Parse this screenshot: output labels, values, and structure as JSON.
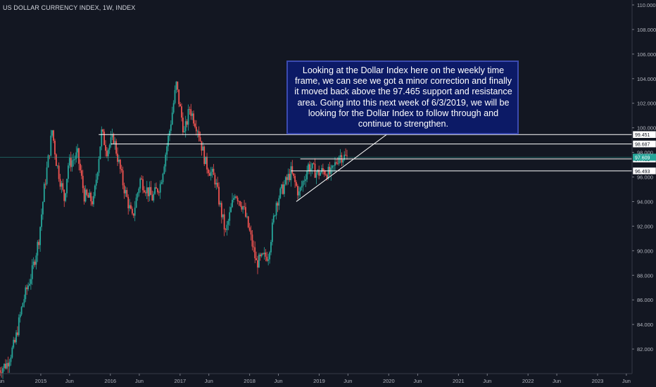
{
  "chart_title": "US DOLLAR CURRENCY INDEX, 1W, INDEX",
  "annotation": "Looking at the Dollar Index here on the weekly time frame, we can see we got a minor correction and finally it moved back above the 97.465 support and resistance area. Going into this next week of 6/3/2019, we will be looking for the Dollar Index to follow through and continue to strengthen.",
  "colors": {
    "background": "#131722",
    "up": "#26a69a",
    "down": "#ef5350",
    "lines": "#ffffff",
    "current": "#26a69a"
  },
  "chart_data": {
    "type": "candlestick",
    "title": "US DOLLAR CURRENCY INDEX, 1W, INDEX",
    "x_range": [
      "2014-06-01",
      "2023-07-01"
    ],
    "ylim": [
      80.0,
      110.4
    ],
    "y_ticks": [
      "82.000",
      "84.000",
      "86.000",
      "88.000",
      "90.000",
      "92.000",
      "94.000",
      "96.000",
      "98.000",
      "100.000",
      "102.000",
      "104.000",
      "106.000",
      "108.000",
      "110.000"
    ],
    "x_ticks": [
      {
        "date": "2014-06-01",
        "label": "Jun"
      },
      {
        "date": "2015-01-01",
        "label": "2015"
      },
      {
        "date": "2015-06-01",
        "label": "Jun"
      },
      {
        "date": "2016-01-01",
        "label": "2016"
      },
      {
        "date": "2016-06-01",
        "label": "Jun"
      },
      {
        "date": "2017-01-01",
        "label": "2017"
      },
      {
        "date": "2017-06-01",
        "label": "Jun"
      },
      {
        "date": "2018-01-01",
        "label": "2018"
      },
      {
        "date": "2018-06-01",
        "label": "Jun"
      },
      {
        "date": "2019-01-01",
        "label": "2019"
      },
      {
        "date": "2019-06-01",
        "label": "Jun"
      },
      {
        "date": "2020-01-01",
        "label": "2020"
      },
      {
        "date": "2020-06-01",
        "label": "Jun"
      },
      {
        "date": "2021-01-01",
        "label": "2021"
      },
      {
        "date": "2021-06-01",
        "label": "Jun"
      },
      {
        "date": "2022-01-01",
        "label": "2022"
      },
      {
        "date": "2022-06-01",
        "label": "Jun"
      },
      {
        "date": "2023-01-01",
        "label": "2023"
      },
      {
        "date": "2023-06-01",
        "label": "Jun"
      }
    ],
    "price_path": [
      [
        "2014-05-26",
        80.2
      ],
      [
        "2014-07-14",
        80.8
      ],
      [
        "2014-08-25",
        82.5
      ],
      [
        "2014-10-06",
        85.8
      ],
      [
        "2014-11-24",
        88.3
      ],
      [
        "2014-12-29",
        91.0
      ],
      [
        "2015-01-26",
        95.0
      ],
      [
        "2015-03-09",
        99.8
      ],
      [
        "2015-03-30",
        97.3
      ],
      [
        "2015-05-11",
        94.2
      ],
      [
        "2015-06-01",
        97.0
      ],
      [
        "2015-07-20",
        97.8
      ],
      [
        "2015-08-24",
        94.5
      ],
      [
        "2015-10-12",
        94.0
      ],
      [
        "2015-11-23",
        99.6
      ],
      [
        "2015-12-21",
        98.2
      ],
      [
        "2016-01-25",
        99.2
      ],
      [
        "2016-03-14",
        95.5
      ],
      [
        "2016-05-02",
        92.6
      ],
      [
        "2016-06-13",
        95.8
      ],
      [
        "2016-08-15",
        94.3
      ],
      [
        "2016-09-26",
        95.4
      ],
      [
        "2016-11-14",
        99.8
      ],
      [
        "2016-12-19",
        103.5
      ],
      [
        "2017-01-30",
        99.5
      ],
      [
        "2017-02-27",
        101.6
      ],
      [
        "2017-04-10",
        100.0
      ],
      [
        "2017-05-22",
        97.1
      ],
      [
        "2017-07-10",
        95.8
      ],
      [
        "2017-08-14",
        93.0
      ],
      [
        "2017-09-04",
        91.4
      ],
      [
        "2017-10-23",
        94.8
      ],
      [
        "2017-12-04",
        93.6
      ],
      [
        "2018-01-08",
        91.5
      ],
      [
        "2018-02-12",
        89.0
      ],
      [
        "2018-04-16",
        89.7
      ],
      [
        "2018-05-28",
        94.0
      ],
      [
        "2018-08-13",
        96.4
      ],
      [
        "2018-09-24",
        94.6
      ],
      [
        "2018-11-12",
        96.9
      ],
      [
        "2018-12-31",
        96.3
      ],
      [
        "2019-02-04",
        96.5
      ],
      [
        "2019-03-11",
        96.2
      ],
      [
        "2019-04-22",
        97.8
      ],
      [
        "2019-05-27",
        97.6
      ]
    ],
    "horizontal_levels": [
      {
        "value": 99.451,
        "label": "99.451",
        "from": "2015-11-01"
      },
      {
        "value": 98.687,
        "label": "98.687",
        "from": "2016-01-04"
      },
      {
        "value": 97.465,
        "label": "97.465",
        "from": "2018-09-24"
      },
      {
        "value": 96.493,
        "label": "96.493",
        "from": "2018-08-06"
      }
    ],
    "current_price": {
      "value": 97.609,
      "label": "97.609"
    },
    "trendline": {
      "from": [
        "2018-09-03",
        94.0
      ],
      "to": [
        "2020-01-20",
        99.8
      ]
    }
  }
}
